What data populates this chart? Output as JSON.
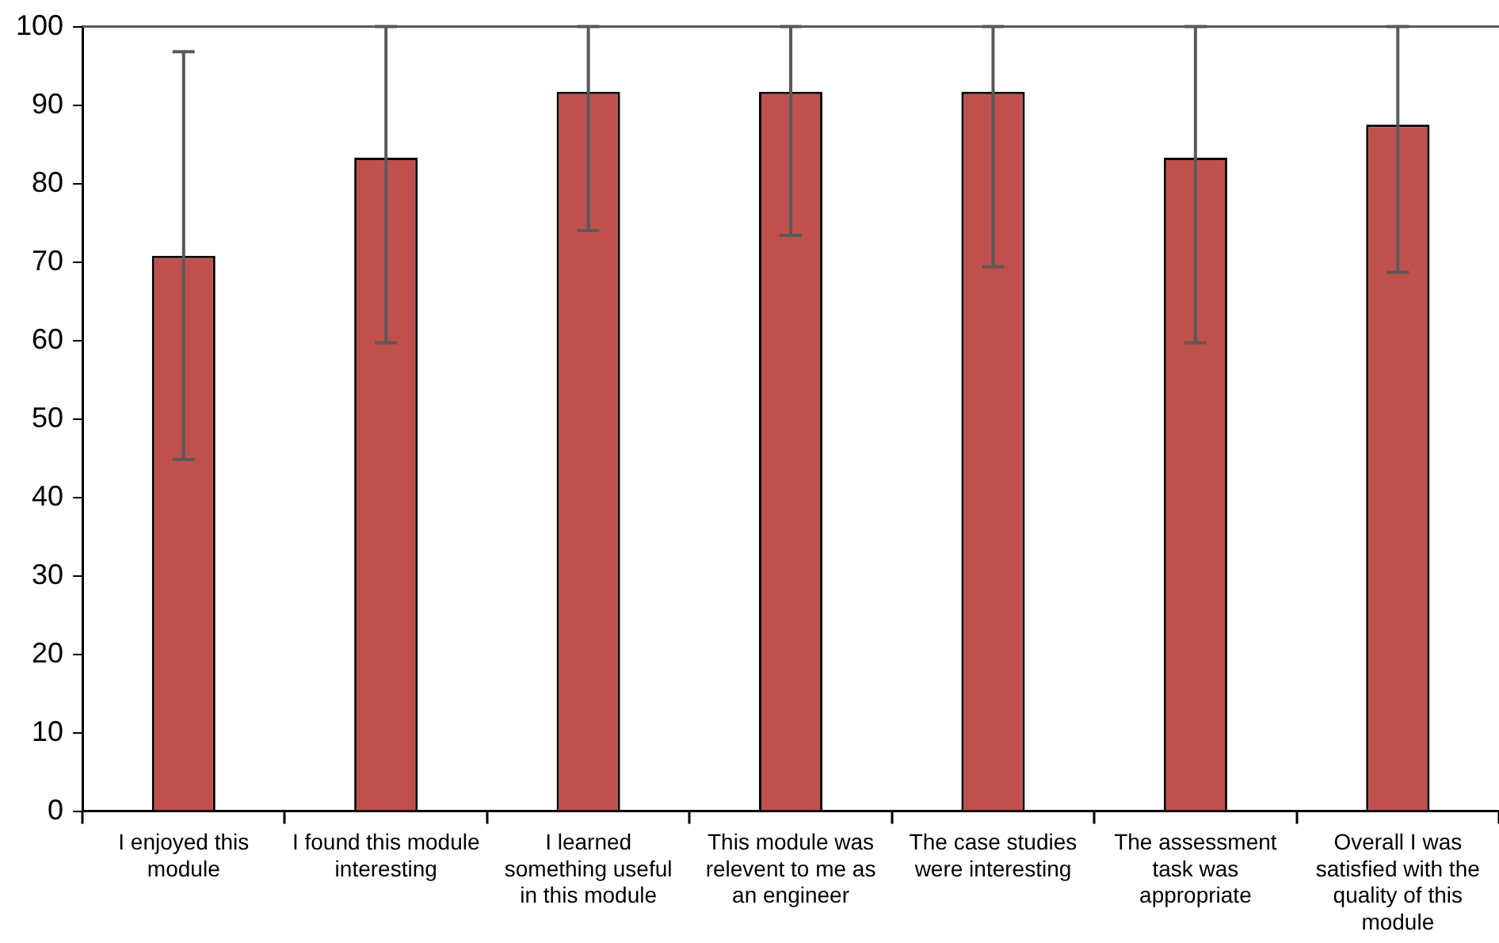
{
  "chart_data": {
    "type": "bar",
    "categories": [
      "I enjoyed this module",
      "I found this module interesting",
      "I learned something useful in this module",
      "This module was relevent to me as an engineer",
      "The case studies were interesting",
      "The assessment task was appropriate",
      "Overall I was satisfied with the quality of this module"
    ],
    "values": [
      70.8,
      83.3,
      91.7,
      91.7,
      91.7,
      83.3,
      87.5
    ],
    "errors": [
      [
        44.8,
        96.8
      ],
      [
        59.7,
        100
      ],
      [
        74,
        100
      ],
      [
        73.4,
        100
      ],
      [
        69.4,
        100
      ],
      [
        59.7,
        100
      ],
      [
        68.7,
        100
      ]
    ],
    "color": "#c0504d",
    "ylim": [
      0,
      100
    ],
    "yticks": [
      0,
      10,
      20,
      30,
      40,
      50,
      60,
      70,
      80,
      90,
      100
    ],
    "grid": false,
    "legend": false
  }
}
